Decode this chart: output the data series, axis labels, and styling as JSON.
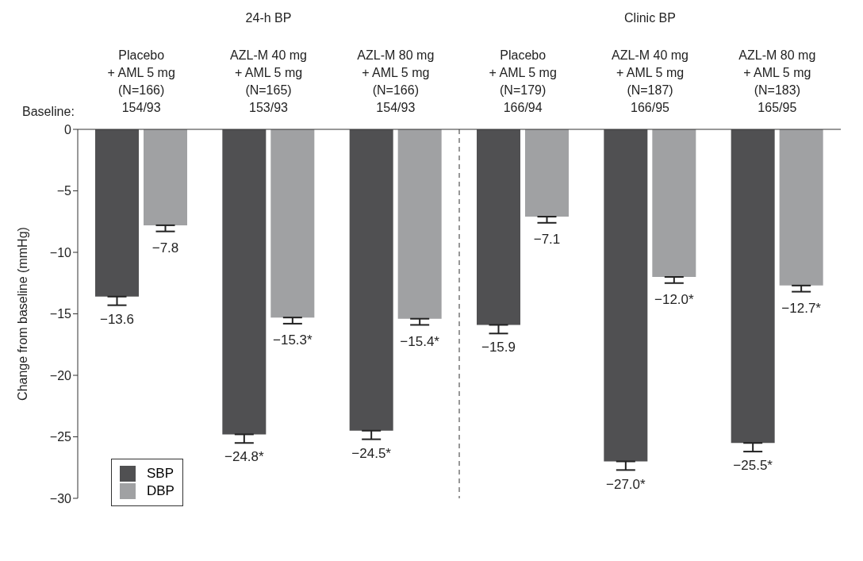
{
  "chart_data": {
    "type": "bar",
    "categories": [
      "Placebo\n+ AML 5 mg\n(N=166)\n154/93",
      "AZL-M 40 mg\n+ AML 5 mg\n(N=165)\n153/93",
      "AZL-M 80 mg\n+ AML 5 mg\n(N=166)\n154/93",
      "Placebo\n+ AML 5 mg\n(N=179)\n166/94",
      "AZL-M 40 mg\n+ AML 5 mg\n(N=187)\n166/95",
      "AZL-M 80 mg\n+ AML 5 mg\n(N=183)\n165/95"
    ],
    "series": [
      {
        "name": "SBP",
        "color": "#505052",
        "values": [
          -13.6,
          -24.8,
          -24.5,
          -15.9,
          -27.0,
          -25.5
        ],
        "errors": [
          [
            -14.3,
            -13.6
          ],
          [
            -25.5,
            -24.8
          ],
          [
            -25.2,
            -24.5
          ],
          [
            -16.6,
            -15.9
          ],
          [
            -27.7,
            -27.0
          ],
          [
            -26.2,
            -25.5
          ]
        ],
        "value_labels": [
          "−13.6",
          "−24.8*",
          "−24.5*",
          "−15.9",
          "−27.0*",
          "−25.5*"
        ]
      },
      {
        "name": "DBP",
        "color": "#a0a1a3",
        "values": [
          -7.8,
          -15.3,
          -15.4,
          -7.1,
          -12.0,
          -12.7
        ],
        "errors": [
          [
            -8.3,
            -7.8
          ],
          [
            -15.8,
            -15.3
          ],
          [
            -15.9,
            -15.4
          ],
          [
            -7.6,
            -7.1
          ],
          [
            -12.5,
            -12.0
          ],
          [
            -13.2,
            -12.7
          ]
        ],
        "value_labels": [
          "−7.8",
          "−15.3*",
          "−15.4*",
          "−7.1",
          "−12.0*",
          "−12.7*"
        ]
      }
    ],
    "ylabel": "Change from baseline (mmHg)",
    "ylim": [
      -30,
      0
    ],
    "yticks": [
      {
        "value": 0,
        "label": "0"
      },
      {
        "value": -5,
        "label": "−5"
      },
      {
        "value": -10,
        "label": "−10"
      },
      {
        "value": -15,
        "label": "−15"
      },
      {
        "value": -20,
        "label": "−20"
      },
      {
        "value": -25,
        "label": "−25"
      },
      {
        "value": -30,
        "label": "−30"
      }
    ],
    "annotations": [
      "24-h BP",
      "Clinic BP",
      "Baseline:"
    ],
    "legend": "bottom left",
    "grid": false
  }
}
